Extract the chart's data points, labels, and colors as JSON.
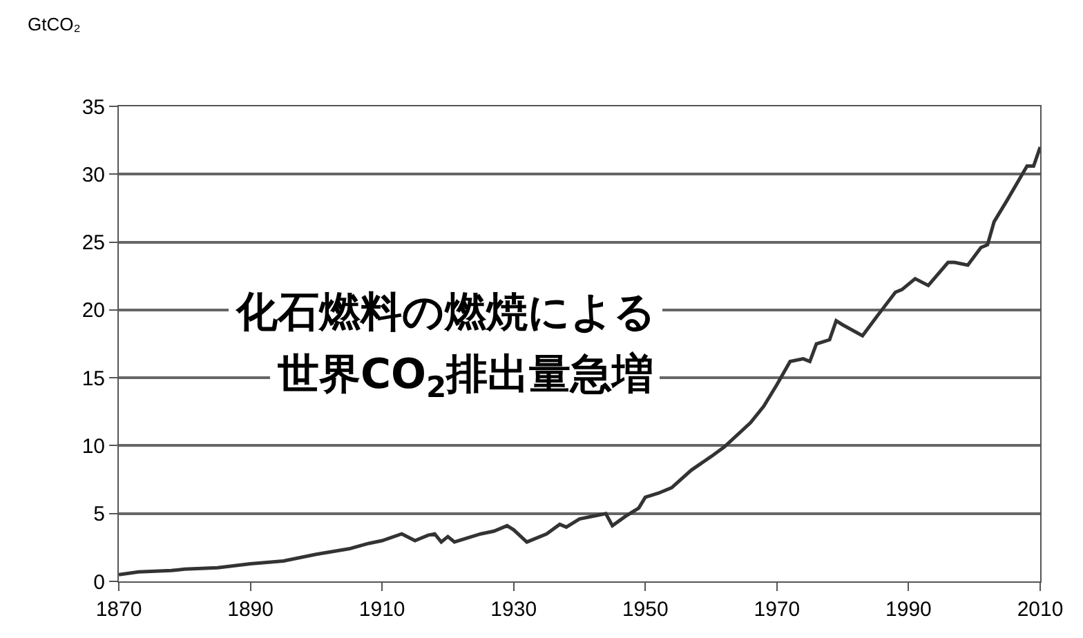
{
  "chart_data": {
    "type": "line",
    "ylabel": "GtCO₂",
    "annotations": [
      "化石燃料の燃焼による",
      "世界CO$_{2}$排出量急増"
    ],
    "x": [
      1870,
      1873,
      1878,
      1880,
      1885,
      1890,
      1895,
      1900,
      1905,
      1908,
      1910,
      1913,
      1915,
      1917,
      1918,
      1919,
      1920,
      1921,
      1925,
      1927,
      1929,
      1930,
      1932,
      1935,
      1937,
      1938,
      1940,
      1943,
      1944,
      1945,
      1947,
      1949,
      1950,
      1952,
      1954,
      1957,
      1960,
      1962,
      1966,
      1968,
      1970,
      1972,
      1974,
      1975,
      1976,
      1978,
      1979,
      1980,
      1983,
      1985,
      1988,
      1989,
      1991,
      1993,
      1996,
      1997,
      1999,
      2001,
      2002,
      2003,
      2005,
      2008,
      2009,
      2010
    ],
    "series": [
      {
        "color": "#333333",
        "values": [
          0.5,
          0.7,
          0.8,
          0.9,
          1.0,
          1.3,
          1.5,
          2.0,
          2.4,
          2.8,
          3.0,
          3.5,
          3.0,
          3.4,
          3.5,
          2.9,
          3.3,
          2.9,
          3.5,
          3.7,
          4.1,
          3.8,
          2.9,
          3.5,
          4.2,
          4.0,
          4.6,
          4.9,
          5.0,
          4.1,
          4.8,
          5.4,
          6.2,
          6.5,
          6.9,
          8.2,
          9.2,
          9.9,
          11.7,
          12.9,
          14.5,
          16.2,
          16.4,
          16.2,
          17.5,
          17.8,
          19.2,
          18.9,
          18.1,
          19.4,
          21.3,
          21.5,
          22.3,
          21.8,
          23.5,
          23.5,
          23.3,
          24.6,
          24.8,
          26.5,
          28.1,
          30.6,
          30.6,
          32.0
        ]
      }
    ],
    "xlim": [
      1870,
      2010
    ],
    "xticks": [
      1870,
      1890,
      1910,
      1930,
      1950,
      1970,
      1990,
      2010
    ],
    "ylim": [
      0,
      35
    ],
    "yticks": [
      0,
      5,
      10,
      15,
      20,
      25,
      30,
      35
    ],
    "grid": "y",
    "marker": "none",
    "line_style": "solid"
  }
}
